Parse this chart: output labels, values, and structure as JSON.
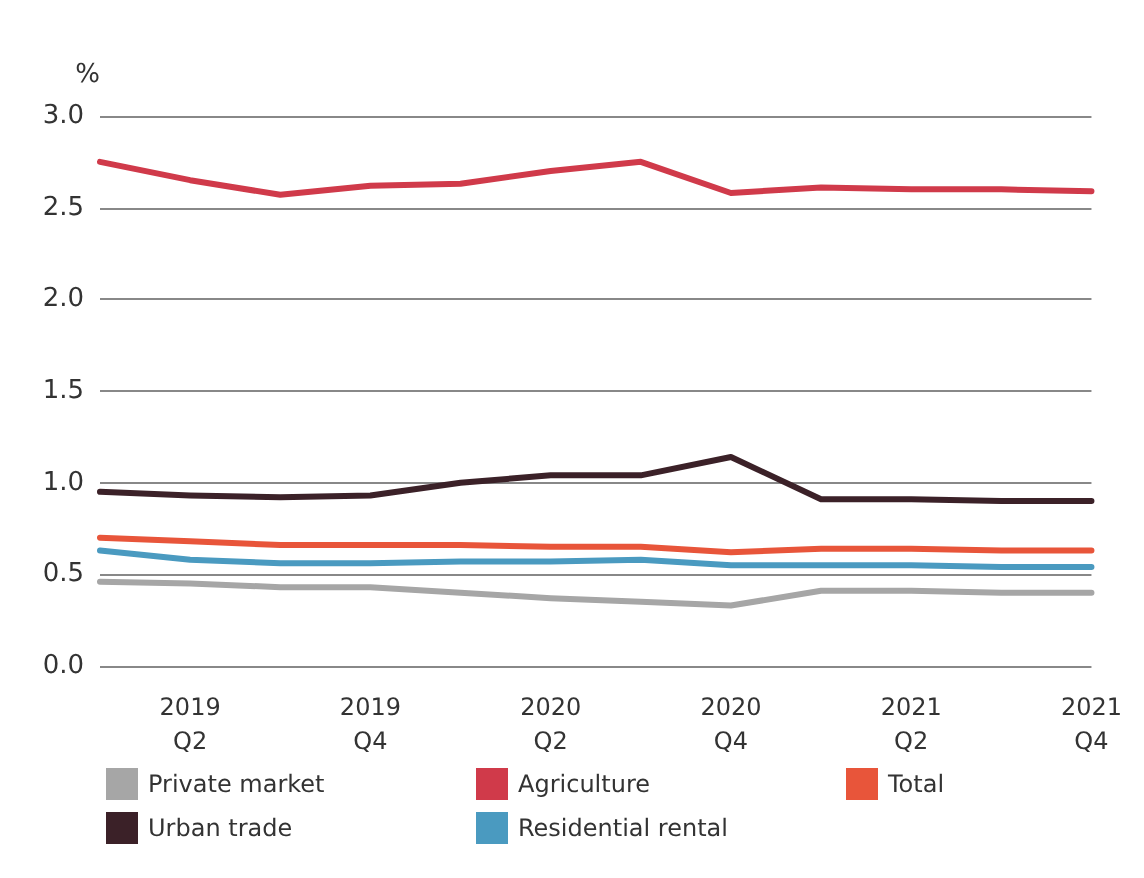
{
  "chart_data": {
    "type": "line",
    "ylabel": "%",
    "categories": [
      null,
      "2019 Q2",
      null,
      "2019 Q4",
      null,
      "2020 Q2",
      null,
      "2020 Q4",
      null,
      "2021 Q2",
      null,
      "2021 Q4"
    ],
    "series": [
      {
        "name": "Private market",
        "color": "#a6a6a6",
        "values": [
          0.46,
          0.45,
          0.43,
          0.43,
          0.4,
          0.37,
          0.35,
          0.33,
          0.41,
          0.41,
          0.4,
          0.4
        ]
      },
      {
        "name": "Urban trade",
        "color": "#3b2128",
        "values": [
          0.95,
          0.93,
          0.92,
          0.93,
          1.0,
          1.04,
          1.04,
          1.14,
          0.91,
          0.91,
          0.9,
          0.9
        ]
      },
      {
        "name": "Agriculture",
        "color": "#d03a4a",
        "values": [
          2.75,
          2.65,
          2.57,
          2.62,
          2.63,
          2.7,
          2.75,
          2.58,
          2.61,
          2.6,
          2.6,
          2.59
        ]
      },
      {
        "name": "Residential rental",
        "color": "#4a9ac0",
        "values": [
          0.63,
          0.58,
          0.56,
          0.56,
          0.57,
          0.57,
          0.58,
          0.55,
          0.55,
          0.55,
          0.54,
          0.54
        ]
      },
      {
        "name": "Total",
        "color": "#e8553a",
        "values": [
          0.7,
          0.68,
          0.66,
          0.66,
          0.66,
          0.65,
          0.65,
          0.62,
          0.64,
          0.64,
          0.63,
          0.63
        ]
      }
    ],
    "ylim": [
      0,
      3
    ],
    "yticks": [
      {
        "value": 0,
        "label": "0.0"
      },
      0.5,
      {
        "value": 1,
        "label": "1.0"
      },
      1.5,
      {
        "value": 2,
        "label": "2.0"
      },
      2.5,
      {
        "value": 3,
        "label": "3.0"
      }
    ],
    "grid": "y",
    "legend": "bottom",
    "marker": "none",
    "line_style": "solid"
  }
}
